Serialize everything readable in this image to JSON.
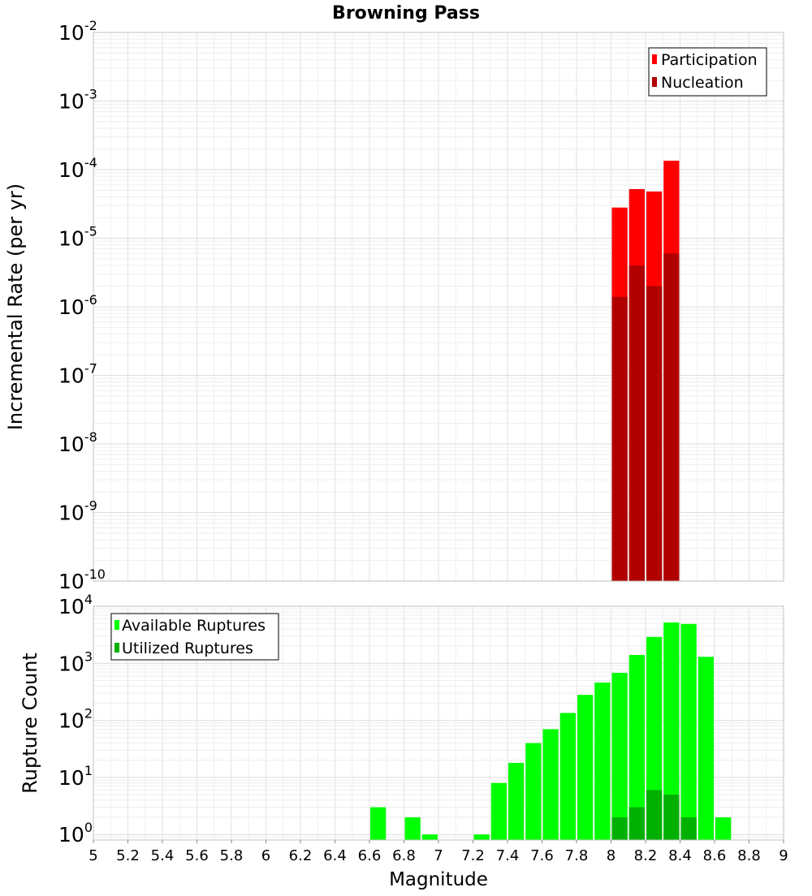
{
  "chart_data": [
    {
      "type": "bar",
      "title": "Browning Pass",
      "ylabel": "Incremental Rate (per yr)",
      "xlabel": "",
      "xlim": [
        5,
        9
      ],
      "yscale": "log",
      "ylim": [
        1e-10,
        0.01
      ],
      "ytick_base": "10",
      "ytick_exponents": [
        "-10",
        "-9",
        "-8",
        "-7",
        "-6",
        "-5",
        "-4",
        "-3",
        "-2"
      ],
      "bar_width": 0.1,
      "legend": {
        "position": "top-right",
        "entries": [
          "Participation",
          "Nucleation"
        ]
      },
      "colors": {
        "Participation": "#ff0000",
        "Nucleation": "#b00000"
      },
      "series": [
        {
          "name": "Participation",
          "x": [
            8.05,
            8.15,
            8.25,
            8.35
          ],
          "values": [
            2.8e-05,
            5.2e-05,
            4.8e-05,
            0.000135
          ]
        },
        {
          "name": "Nucleation",
          "x": [
            8.05,
            8.15,
            8.25,
            8.35
          ],
          "values": [
            1.4e-06,
            4e-06,
            2e-06,
            6e-06
          ]
        }
      ]
    },
    {
      "type": "bar",
      "title": "",
      "ylabel": "Rupture Count",
      "xlabel": "Magnitude",
      "xlim": [
        5,
        9
      ],
      "yscale": "log",
      "ylim": [
        0.8,
        10000
      ],
      "ytick_base": "10",
      "ytick_exponents": [
        "0",
        "1",
        "2",
        "3",
        "4"
      ],
      "xticks": [
        "5",
        "5.2",
        "5.4",
        "5.6",
        "5.8",
        "6",
        "6.2",
        "6.4",
        "6.6",
        "6.8",
        "7",
        "7.2",
        "7.4",
        "7.6",
        "7.8",
        "8",
        "8.2",
        "8.4",
        "8.6",
        "8.8",
        "9"
      ],
      "bar_width": 0.1,
      "legend": {
        "position": "top-left",
        "entries": [
          "Available Ruptures",
          "Utilized Ruptures"
        ]
      },
      "colors": {
        "Available Ruptures": "#00ff00",
        "Utilized Ruptures": "#00b000"
      },
      "series": [
        {
          "name": "Available Ruptures",
          "x": [
            6.65,
            6.85,
            6.95,
            7.25,
            7.35,
            7.45,
            7.55,
            7.65,
            7.75,
            7.85,
            7.95,
            8.05,
            8.15,
            8.25,
            8.35,
            8.45,
            8.55,
            8.65
          ],
          "values": [
            3,
            2,
            1,
            1,
            8,
            18,
            40,
            70,
            135,
            280,
            460,
            680,
            1400,
            2900,
            5200,
            4900,
            1300,
            2
          ]
        },
        {
          "name": "Utilized Ruptures",
          "x": [
            8.05,
            8.15,
            8.25,
            8.35,
            8.45
          ],
          "values": [
            2,
            3,
            6,
            5,
            2
          ]
        }
      ]
    }
  ]
}
